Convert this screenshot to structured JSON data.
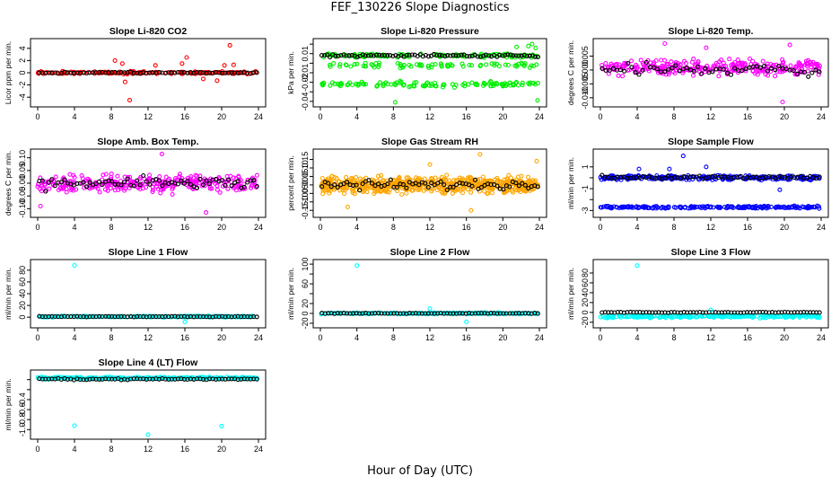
{
  "page": {
    "title": "FEF_130226  Slope Diagnostics",
    "x_title": "Hour of Day (UTC)"
  },
  "chart_data": [
    {
      "type": "scatter",
      "title": "Slope Li-820 CO2",
      "ylabel": "Licor ppm per min.",
      "color": "#ff0000",
      "xlim": [
        0,
        24
      ],
      "ylim": [
        -5,
        5
      ],
      "yticks": [
        -4,
        -2,
        0,
        2,
        4
      ],
      "ytick_labels": [
        "-4",
        "-2",
        "0",
        "2",
        "4"
      ],
      "xticks": [
        0,
        4,
        8,
        12,
        16,
        20,
        24
      ],
      "xtick_labels": [
        "0",
        "4",
        "8",
        "12",
        "16",
        "20",
        "24"
      ],
      "bands": [
        {
          "center": 0,
          "spread": 0.3,
          "n": 180
        }
      ],
      "black": {
        "center": 0,
        "spread": 0.15,
        "n": 70
      },
      "outliers": [
        [
          8.4,
          2.0
        ],
        [
          9.2,
          1.5
        ],
        [
          9.5,
          -1.5
        ],
        [
          10.0,
          -4.5
        ],
        [
          12.8,
          1.2
        ],
        [
          15.7,
          1.5
        ],
        [
          16.2,
          2.5
        ],
        [
          18.0,
          -1.0
        ],
        [
          19.5,
          -1.3
        ],
        [
          20.3,
          1.2
        ],
        [
          20.9,
          4.5
        ],
        [
          21.3,
          1.3
        ]
      ]
    },
    {
      "type": "scatter",
      "title": "Slope Li-820 Pressure",
      "ylabel": "kPa per min.",
      "color": "#00ee00",
      "xlim": [
        0,
        24
      ],
      "ylim": [
        -0.042,
        0.022
      ],
      "yticks": [
        -0.04,
        -0.03,
        -0.02,
        -0.01,
        0,
        0.01,
        0.02
      ],
      "ytick_labels": [
        "-0.04",
        "",
        "-0.02",
        "-0.01",
        "",
        "0.01",
        ""
      ],
      "xticks": [
        0,
        4,
        8,
        12,
        16,
        20,
        24
      ],
      "xtick_labels": [
        "0",
        "4",
        "8",
        "12",
        "16",
        "20",
        "24"
      ],
      "bands": [
        {
          "center": 0.008,
          "spread": 0.003,
          "n": 120
        },
        {
          "center": -0.002,
          "spread": 0.004,
          "n": 80
        },
        {
          "center": -0.022,
          "spread": 0.004,
          "n": 120
        }
      ],
      "black": {
        "center": 0.008,
        "spread": 0.002,
        "n": 80
      },
      "outliers": [
        [
          8.2,
          -0.041
        ],
        [
          23.8,
          -0.039
        ],
        [
          23.2,
          0.02
        ],
        [
          22.8,
          0.018
        ],
        [
          21.5,
          0.017
        ],
        [
          23.6,
          0.016
        ]
      ]
    },
    {
      "type": "scatter",
      "title": "Slope Li-820 Temp.",
      "ylabel": "degrees C per min.",
      "color": "#ff00ff",
      "xlim": [
        0,
        24
      ],
      "ylim": [
        -0.012,
        0.01
      ],
      "yticks": [
        -0.01,
        -0.005,
        0,
        0.005
      ],
      "ytick_labels": [
        "-0.010",
        "-0.005",
        "0.000",
        "0.005"
      ],
      "xticks": [
        0,
        4,
        8,
        12,
        16,
        20,
        24
      ],
      "xtick_labels": [
        "0",
        "4",
        "8",
        "12",
        "16",
        "20",
        "24"
      ],
      "bands": [
        {
          "center": 0.001,
          "spread": 0.004,
          "n": 300
        }
      ],
      "black": {
        "center": 0,
        "spread": 0.003,
        "n": 60
      },
      "outliers": [
        [
          7.0,
          0.0095
        ],
        [
          19.8,
          -0.0115
        ],
        [
          11.5,
          0.008
        ],
        [
          20.6,
          0.009
        ]
      ]
    },
    {
      "type": "scatter",
      "title": "Slope Amb. Box Temp.",
      "ylabel": "degrees C per min.",
      "color": "#ff00ff",
      "xlim": [
        0,
        24
      ],
      "ylim": [
        -0.12,
        0.12
      ],
      "yticks": [
        -0.1,
        -0.05,
        0,
        0.05,
        0.1
      ],
      "ytick_labels": [
        "-0.10",
        "-0.05",
        "0.00",
        "0.05",
        "0.10"
      ],
      "xticks": [
        0,
        4,
        8,
        12,
        16,
        20,
        24
      ],
      "xtick_labels": [
        "0",
        "4",
        "8",
        "12",
        "16",
        "20",
        "24"
      ],
      "bands": [
        {
          "center": 0,
          "spread": 0.05,
          "n": 300
        }
      ],
      "black": {
        "center": 0,
        "spread": 0.035,
        "n": 70
      },
      "outliers": [
        [
          13.5,
          0.115
        ],
        [
          18.3,
          -0.115
        ],
        [
          0.3,
          -0.09
        ]
      ]
    },
    {
      "type": "scatter",
      "title": "Slope Gas Stream RH",
      "ylabel": "percent per min.",
      "color": "#ffa500",
      "xlim": [
        0,
        24
      ],
      "ylim": [
        -0.17,
        0.19
      ],
      "yticks": [
        -0.15,
        -0.1,
        -0.05,
        0,
        0.05,
        0.1,
        0.15
      ],
      "ytick_labels": [
        "-0.15",
        "-0.10",
        "-0.05",
        "0.00",
        "0.05",
        "0.10",
        "0.15"
      ],
      "xticks": [
        0,
        4,
        8,
        12,
        16,
        20,
        24
      ],
      "xtick_labels": [
        "0",
        "4",
        "8",
        "12",
        "16",
        "20",
        "24"
      ],
      "bands": [
        {
          "center": 0,
          "spread": 0.07,
          "n": 600
        }
      ],
      "black": {
        "center": 0,
        "spread": 0.04,
        "n": 70
      },
      "outliers": [
        [
          17.5,
          0.18
        ],
        [
          16.5,
          -0.15
        ],
        [
          23.7,
          0.14
        ],
        [
          12.0,
          0.12
        ],
        [
          3.0,
          -0.13
        ]
      ]
    },
    {
      "type": "scatter",
      "title": "Slope Sample Flow",
      "ylabel": "ml/min per min.",
      "color": "#0000ff",
      "xlim": [
        0,
        24
      ],
      "ylim": [
        -3.3,
        2.3
      ],
      "yticks": [
        -3,
        -2,
        -1,
        0,
        1
      ],
      "ytick_labels": [
        "-3",
        "",
        "-1",
        "",
        "1"
      ],
      "xticks": [
        0,
        4,
        8,
        12,
        16,
        20,
        24
      ],
      "xtick_labels": [
        "0",
        "4",
        "8",
        "12",
        "16",
        "20",
        "24"
      ],
      "bands": [
        {
          "center": 0,
          "spread": 0.3,
          "n": 260
        },
        {
          "center": -2.7,
          "spread": 0.15,
          "n": 200
        }
      ],
      "black": {
        "center": 0.05,
        "spread": 0.2,
        "n": 70
      },
      "outliers": [
        [
          9.0,
          2.0
        ],
        [
          4.2,
          0.8
        ],
        [
          7.5,
          0.8
        ],
        [
          19.5,
          -1.1
        ],
        [
          11.5,
          1.0
        ]
      ]
    },
    {
      "type": "scatter",
      "title": "Slope Line 1 Flow",
      "ylabel": "ml/min per min.",
      "color": "#00ffff",
      "xlim": [
        0,
        24
      ],
      "ylim": [
        -12,
        92
      ],
      "yticks": [
        0,
        20,
        40,
        60,
        80
      ],
      "ytick_labels": [
        "0",
        "20",
        "40",
        "60",
        "80"
      ],
      "xticks": [
        0,
        4,
        8,
        12,
        16,
        20,
        24
      ],
      "xtick_labels": [
        "0",
        "4",
        "8",
        "12",
        "16",
        "20",
        "24"
      ],
      "bands": [
        {
          "center": 1,
          "spread": 1.5,
          "n": 200
        }
      ],
      "black": {
        "center": 1,
        "spread": 0.8,
        "n": 70
      },
      "outliers": [
        [
          4.0,
          88
        ],
        [
          16.0,
          -8
        ]
      ]
    },
    {
      "type": "scatter",
      "title": "Slope Line 2 Flow",
      "ylabel": "ml/min per min.",
      "color": "#00ffff",
      "xlim": [
        0,
        24
      ],
      "ylim": [
        -22,
        102
      ],
      "yticks": [
        -20,
        0,
        20,
        40,
        60,
        80,
        100
      ],
      "ytick_labels": [
        "-20",
        "0",
        "20",
        "",
        "60",
        "",
        "100"
      ],
      "xticks": [
        0,
        4,
        8,
        12,
        16,
        20,
        24
      ],
      "xtick_labels": [
        "0",
        "4",
        "8",
        "12",
        "16",
        "20",
        "24"
      ],
      "bands": [
        {
          "center": 0,
          "spread": 2,
          "n": 200
        }
      ],
      "black": {
        "center": 0,
        "spread": 1,
        "n": 70
      },
      "outliers": [
        [
          4.0,
          97
        ],
        [
          12.0,
          10
        ],
        [
          16.0,
          -17
        ]
      ]
    },
    {
      "type": "scatter",
      "title": "Slope Line 3 Flow",
      "ylabel": "ml/min per min.",
      "color": "#00ffff",
      "xlim": [
        0,
        24
      ],
      "ylim": [
        -24,
        100
      ],
      "yticks": [
        -20,
        0,
        20,
        40,
        60,
        80
      ],
      "ytick_labels": [
        "-20",
        "0",
        "20",
        "40",
        "60",
        "80"
      ],
      "xticks": [
        0,
        4,
        8,
        12,
        16,
        20,
        24
      ],
      "xtick_labels": [
        "0",
        "4",
        "8",
        "12",
        "16",
        "20",
        "24"
      ],
      "bands": [
        {
          "center": -8,
          "spread": 4,
          "n": 260
        }
      ],
      "black": {
        "center": 0,
        "spread": 1,
        "n": 70
      },
      "outliers": [
        [
          4.0,
          95
        ],
        [
          12.0,
          5
        ]
      ]
    },
    {
      "type": "scatter",
      "title": "Slope Line 4 (LT) Flow",
      "ylabel": "ml/min per min.",
      "color": "#00ffff",
      "xlim": [
        0,
        24
      ],
      "ylim": [
        -1.12,
        0.12
      ],
      "yticks": [
        -1,
        -0.8,
        -0.6,
        -0.4,
        -0.2,
        0
      ],
      "ytick_labels": [
        "-1.0",
        "-0.8",
        "-0.6",
        "-0.4",
        "",
        ""
      ],
      "xticks": [
        0,
        4,
        8,
        12,
        16,
        20,
        24
      ],
      "xtick_labels": [
        "0",
        "4",
        "8",
        "12",
        "16",
        "20",
        "24"
      ],
      "bands": [
        {
          "center": 0.03,
          "spread": 0.03,
          "n": 300
        }
      ],
      "black": {
        "center": 0.01,
        "spread": 0.02,
        "n": 70
      },
      "outliers": [
        [
          4.0,
          -0.92
        ],
        [
          12.0,
          -1.1
        ],
        [
          20.0,
          -0.93
        ]
      ]
    }
  ]
}
